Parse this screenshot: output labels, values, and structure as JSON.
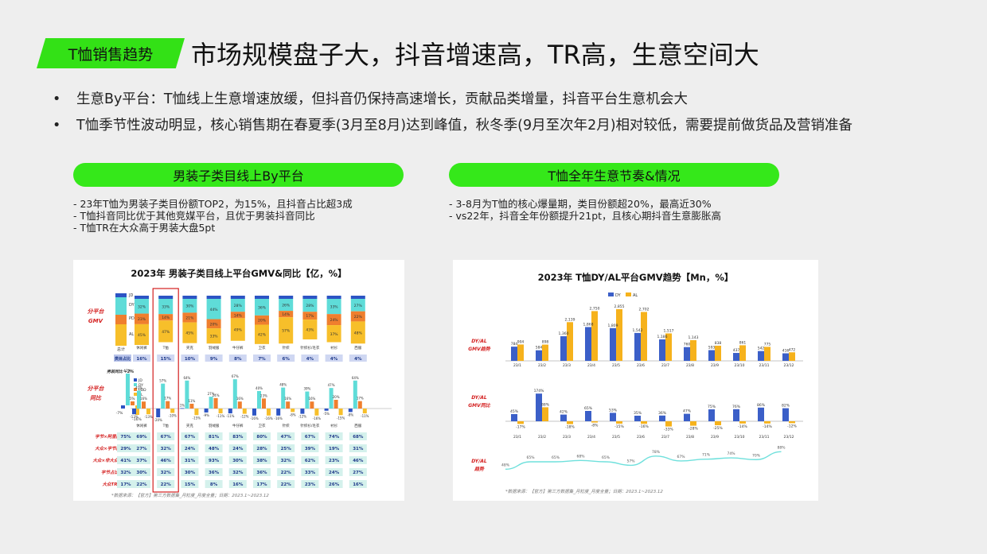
{
  "header": {
    "tag": "T恤销售趋势",
    "headline": "市场规模盘子大，抖音增速高，TR高，生意空间大"
  },
  "bullets": [
    "生意By平台：T恤线上生意增速放缓，但抖音仍保持高速增长，贡献品类增量，抖音平台生意机会大",
    "T恤季节性波动明显，核心销售期在春夏季(3月至8月)达到峰值，秋冬季(9月至次年2月)相对较低，需要提前做货品及营销准备"
  ],
  "left": {
    "pill": "男装子类目线上By平台",
    "notes": [
      "- 23年T恤为男装子类目份额TOP2，为15%，且抖音占比超3成",
      "- T恤抖音同比优于其他竞媒平台，且优于男装抖音同比",
      "- T恤TR在大众高于男装大盘5pt"
    ]
  },
  "right": {
    "pill": "T恤全年生意节奏&情况",
    "notes": [
      "- 3-8月为T恤的核心爆量期，类目份额超20%，最高近30%",
      "- vs22年，抖音全年份额提升21pt，且核心期抖音生意膨胀高"
    ]
  },
  "chart_data": [
    {
      "type": "bar",
      "title": "2023年 男装子类目线上平台GMV&同比【亿，%】",
      "row_labels": {
        "share": [
          "分平台",
          "GMV"
        ],
        "yoy": [
          "分平台",
          "同比"
        ],
        "total": "总计"
      },
      "legend": [
        "JD",
        "DY",
        "PDD",
        "AL"
      ],
      "legend_yoy": [
        "JD",
        "DY",
        "PDD",
        "AL"
      ],
      "categories": [
        "休闲裤",
        "T恤",
        "夹克",
        "羽绒服",
        "牛仔裤",
        "卫衣",
        "针织",
        "针织衫/毛衣",
        "衬衫",
        "西服"
      ],
      "category_share_label": "类目占比",
      "category_share": [
        "16%",
        "15%",
        "10%",
        "9%",
        "8%",
        "7%",
        "6%",
        "4%",
        "4%",
        "4%"
      ],
      "share_stack": {
        "DY": [
          "32%",
          "33%",
          "30%",
          "44%",
          "28%",
          "36%",
          "26%",
          "28%",
          "33%",
          "27%"
        ],
        "PDD": [
          "23%",
          "14%",
          "21%",
          "20%",
          "14%",
          "20%",
          "14%",
          "17%",
          "24%",
          "22%"
        ],
        "AL": [
          "45%",
          "47%",
          "45%",
          "33%",
          "49%",
          "42%",
          "57%",
          "43%",
          "37%",
          "48%"
        ]
      },
      "yoy_legend_title": "男装同比 +2%",
      "yoy_legend_values": [
        "47%",
        "5%",
        "-7%",
        "-16%"
      ],
      "yoy": {
        "JD": [
          "-13%",
          "-20%",
          "1%",
          "-9%",
          "-11%",
          "-16%",
          "-16%",
          "-12%",
          "-5%",
          "-8%"
        ],
        "DY": [
          "41%",
          "57%",
          "64%",
          "27%",
          "67%",
          "40%",
          "48%",
          "39%",
          "47%",
          "64%"
        ],
        "PDD": [
          "16%",
          "17%",
          "11%",
          "24%",
          "16%",
          "23%",
          "16%",
          "16%",
          "20%",
          "17%"
        ],
        "AL": [
          "-13%",
          "-10%",
          "-15%",
          "-11%",
          "-12%",
          "-16%",
          "-8%",
          "-16%",
          "-15%",
          "-11%"
        ]
      },
      "metric_rows": [
        {
          "label": "字节×阿里同比",
          "values": [
            "75%",
            "69%",
            "67%",
            "67%",
            "81%",
            "83%",
            "80%",
            "47%",
            "67%",
            "74%",
            "68%"
          ]
        },
        {
          "label": "大众×字节同比",
          "values": [
            "29%",
            "27%",
            "32%",
            "24%",
            "48%",
            "24%",
            "28%",
            "25%",
            "39%",
            "19%",
            "31%"
          ]
        },
        {
          "label": "大众×非大众同比",
          "values": [
            "41%",
            "37%",
            "46%",
            "31%",
            "93%",
            "30%",
            "38%",
            "32%",
            "62%",
            "23%",
            "46%"
          ]
        },
        {
          "label": "字节占比",
          "values": [
            "32%",
            "30%",
            "32%",
            "30%",
            "36%",
            "32%",
            "36%",
            "22%",
            "33%",
            "24%",
            "27%"
          ]
        },
        {
          "label": "大众TR",
          "values": [
            "17%",
            "22%",
            "22%",
            "15%",
            "8%",
            "16%",
            "17%",
            "22%",
            "23%",
            "26%",
            "16%"
          ]
        }
      ],
      "source": "*数据来源：【官方】第三方数据集_月粒度_月度全量；日期：2023.1~2023.12"
    },
    {
      "type": "bar",
      "title": "2023年 T恤DY/AL平台GMV趋势【Mn，%】",
      "legend": [
        "DY",
        "AL"
      ],
      "months": [
        "23/1",
        "23/2",
        "23/3",
        "23/4",
        "23/5",
        "23/6",
        "23/7",
        "23/8",
        "23/9",
        "23/10",
        "23/11",
        "23/12"
      ],
      "row_labels": {
        "gmv": [
          "DY/AL",
          "GMV趋势"
        ],
        "yoy": [
          "DY/AL",
          "GMV同比"
        ],
        "ratio": [
          "DY/AL",
          "趋势"
        ]
      },
      "series": [
        {
          "name": "DY",
          "values": [
            784,
            584,
            1360,
            1868,
            1809,
            1542,
            1186,
            760,
            593,
            437,
            542,
            416
          ]
        },
        {
          "name": "AL",
          "values": [
            904,
            898,
            2139,
            2750,
            2855,
            2702,
            1517,
            1143,
            838,
            861,
            775,
            472
          ]
        }
      ],
      "yoy": {
        "DY": [
          45,
          174,
          42,
          65,
          53,
          35,
          36,
          47,
          75,
          76,
          86,
          82
        ],
        "AL": [
          -17,
          88,
          -18,
          -8,
          -15,
          -16,
          -33,
          -28,
          -25,
          -14,
          -14,
          -12
        ]
      },
      "ratio": [
        48,
        65,
        65,
        68,
        65,
        57,
        78,
        67,
        71,
        74,
        70,
        88
      ],
      "source": "*数据来源：【官方】第三方数据集_月粒度_月度全量；日期：2023.1~2023.12"
    }
  ]
}
